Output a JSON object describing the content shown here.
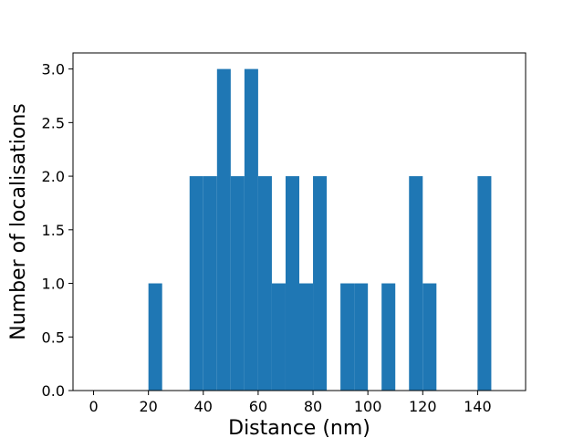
{
  "chart_data": {
    "type": "bar",
    "histogram": true,
    "bin_width": 5,
    "bins": [
      {
        "x0": 20,
        "x1": 25,
        "count": 1
      },
      {
        "x0": 35,
        "x1": 40,
        "count": 2
      },
      {
        "x0": 40,
        "x1": 45,
        "count": 2
      },
      {
        "x0": 45,
        "x1": 50,
        "count": 3
      },
      {
        "x0": 50,
        "x1": 55,
        "count": 2
      },
      {
        "x0": 55,
        "x1": 60,
        "count": 3
      },
      {
        "x0": 60,
        "x1": 65,
        "count": 2
      },
      {
        "x0": 65,
        "x1": 70,
        "count": 1
      },
      {
        "x0": 70,
        "x1": 75,
        "count": 2
      },
      {
        "x0": 75,
        "x1": 80,
        "count": 1
      },
      {
        "x0": 80,
        "x1": 85,
        "count": 2
      },
      {
        "x0": 90,
        "x1": 95,
        "count": 1
      },
      {
        "x0": 95,
        "x1": 100,
        "count": 1
      },
      {
        "x0": 105,
        "x1": 110,
        "count": 1
      },
      {
        "x0": 115,
        "x1": 120,
        "count": 2
      },
      {
        "x0": 120,
        "x1": 125,
        "count": 1
      },
      {
        "x0": 140,
        "x1": 145,
        "count": 2
      }
    ],
    "xlabel": "Distance (nm)",
    "ylabel": "Number of localisations",
    "xlim": [
      -7.5,
      157.5
    ],
    "ylim": [
      0,
      3.15
    ],
    "xticks": [
      0,
      20,
      40,
      60,
      80,
      100,
      120,
      140
    ],
    "xtick_labels": [
      "0",
      "20",
      "40",
      "60",
      "80",
      "100",
      "120",
      "140"
    ],
    "yticks": [
      0,
      0.5,
      1.0,
      1.5,
      2.0,
      2.5,
      3.0
    ],
    "ytick_labels": [
      "0.0",
      "0.5",
      "1.0",
      "1.5",
      "2.0",
      "2.5",
      "3.0"
    ],
    "grid": false,
    "bar_color": "#1f77b4"
  }
}
